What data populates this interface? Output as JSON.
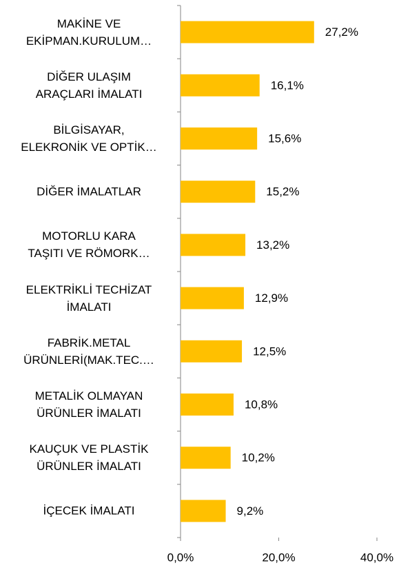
{
  "chart_data": {
    "type": "barh",
    "categories": [
      "MAKİNE VE\nEKİPMAN.KURULUM…",
      "DİĞER ULAŞIM\nARAÇLARI İMALATI",
      "BİLGİSAYAR,\nELEKRONİK VE OPTİK…",
      "DİĞER İMALATLAR",
      "MOTORLU KARA\nTAŞITI VE RÖMORK…",
      "ELEKTRİKLİ TECHİZAT\nİMALATI",
      "FABRİK.METAL\nÜRÜNLERİ(MAK.TEC.…",
      "METALİK OLMAYAN\nÜRÜNLER İMALATI",
      "KAUÇUK VE PLASTİK\nÜRÜNLER İMALATI",
      "İÇECEK İMALATI"
    ],
    "values": [
      27.2,
      16.1,
      15.6,
      15.2,
      13.2,
      12.9,
      12.5,
      10.8,
      10.2,
      9.2
    ],
    "value_labels": [
      "27,2%",
      "16,1%",
      "15,6%",
      "15,2%",
      "13,2%",
      "12,9%",
      "12,5%",
      "10,8%",
      "10,2%",
      "9,2%"
    ],
    "color": "#ffc000",
    "xlim": [
      0,
      40
    ],
    "xticks": [
      {
        "value": 0,
        "label": "0,0%"
      },
      {
        "value": 20,
        "label": "20,0%"
      },
      {
        "value": 40,
        "label": "40,0%"
      }
    ]
  }
}
